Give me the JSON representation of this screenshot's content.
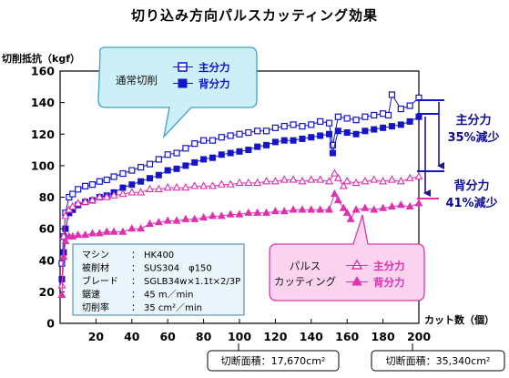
{
  "chart_data": {
    "type": "scatter",
    "title": "切り込み方向パルスカッティング効果",
    "ylabel": "切削抵抗（kgf）",
    "xlabel": "カット数（個）",
    "xlim": [
      0,
      200
    ],
    "ylim": [
      0,
      160
    ],
    "xticks": [
      20,
      40,
      60,
      80,
      100,
      120,
      140,
      160,
      180,
      200
    ],
    "yticks": [
      0,
      20,
      40,
      60,
      80,
      100,
      120,
      140,
      160
    ],
    "grid": false,
    "series": [
      {
        "group": "通常切削",
        "name": "主分力",
        "marker": "square-open",
        "color": "#1515c8",
        "x": [
          1,
          2,
          3,
          5,
          7,
          10,
          14,
          18,
          22,
          26,
          30,
          35,
          40,
          45,
          50,
          55,
          60,
          65,
          70,
          75,
          80,
          85,
          90,
          95,
          100,
          105,
          110,
          115,
          120,
          125,
          130,
          135,
          140,
          145,
          150,
          152,
          155,
          160,
          165,
          170,
          175,
          180,
          183,
          185,
          190,
          195,
          200
        ],
        "y": [
          38,
          55,
          70,
          80,
          82,
          85,
          87,
          88,
          90,
          91,
          93,
          95,
          97,
          99,
          101,
          104,
          107,
          108,
          111,
          114,
          116,
          116,
          118,
          119,
          120,
          121,
          122,
          122,
          124,
          125,
          126,
          125,
          126,
          128,
          127,
          113,
          131,
          130,
          129,
          131,
          132,
          133,
          132,
          145,
          136,
          138,
          143
        ]
      },
      {
        "group": "通常切削",
        "name": "背分力",
        "marker": "square-filled",
        "color": "#1515c8",
        "x": [
          1,
          2,
          3,
          5,
          7,
          10,
          14,
          18,
          22,
          26,
          30,
          35,
          40,
          45,
          50,
          55,
          60,
          65,
          70,
          75,
          80,
          85,
          90,
          95,
          100,
          105,
          110,
          115,
          120,
          125,
          130,
          135,
          140,
          145,
          150,
          152,
          155,
          160,
          165,
          170,
          175,
          180,
          185,
          190,
          195,
          200
        ],
        "y": [
          28,
          45,
          60,
          70,
          72,
          75,
          77,
          78,
          80,
          81,
          83,
          86,
          88,
          90,
          92,
          94,
          97,
          98,
          100,
          102,
          104,
          105,
          107,
          108,
          109,
          110,
          112,
          113,
          115,
          116,
          116,
          117,
          118,
          119,
          120,
          108,
          122,
          121,
          120,
          122,
          123,
          124,
          125,
          126,
          128,
          131
        ]
      },
      {
        "group": "パルスカッティング",
        "name": "主分力",
        "marker": "triangle-open",
        "color": "#e030b0",
        "x": [
          1,
          2,
          3,
          5,
          7,
          10,
          14,
          18,
          22,
          26,
          30,
          35,
          40,
          45,
          50,
          55,
          60,
          65,
          70,
          75,
          80,
          85,
          90,
          95,
          100,
          105,
          110,
          115,
          120,
          125,
          130,
          135,
          140,
          145,
          150,
          153,
          155,
          158,
          160,
          165,
          170,
          175,
          180,
          185,
          190,
          195,
          200
        ],
        "y": [
          24,
          55,
          68,
          72,
          74,
          76,
          77,
          78,
          80,
          80,
          81,
          82,
          83,
          83,
          85,
          85,
          86,
          86,
          86,
          87,
          87,
          87,
          88,
          88,
          89,
          89,
          89,
          90,
          90,
          91,
          91,
          90,
          91,
          91,
          90,
          95,
          92,
          87,
          90,
          89,
          90,
          91,
          90,
          91,
          90,
          92,
          93
        ]
      },
      {
        "group": "パルスカッティング",
        "name": "背分力",
        "marker": "triangle-filled",
        "color": "#e030b0",
        "x": [
          1,
          2,
          3,
          5,
          7,
          10,
          14,
          18,
          22,
          26,
          30,
          35,
          40,
          45,
          50,
          55,
          60,
          65,
          70,
          75,
          80,
          85,
          90,
          95,
          100,
          105,
          110,
          115,
          120,
          125,
          130,
          135,
          140,
          145,
          150,
          153,
          155,
          158,
          160,
          162,
          165,
          170,
          175,
          180,
          185,
          190,
          195,
          200
        ],
        "y": [
          18,
          42,
          52,
          55,
          55,
          56,
          56,
          57,
          57,
          58,
          58,
          58,
          60,
          60,
          63,
          64,
          65,
          65,
          66,
          66,
          67,
          68,
          68,
          69,
          69,
          70,
          70,
          70,
          71,
          71,
          72,
          72,
          72,
          72,
          72,
          82,
          78,
          73,
          70,
          66,
          72,
          73,
          72,
          73,
          74,
          75,
          74,
          76
        ]
      }
    ],
    "legend_normal": {
      "title": "通常切削",
      "main": "主分力",
      "back": "背分力"
    },
    "legend_pulse": {
      "title_line1": "パルス",
      "title_line2": "カッティング",
      "main": "主分力",
      "back": "背分力"
    },
    "annotations": {
      "main_force_reduction": {
        "label": "主分力",
        "value": "35%減少"
      },
      "back_force_reduction": {
        "label": "背分力",
        "value": "41%減少"
      },
      "cut_area_100": "切断面積：17,670cm²",
      "cut_area_200": "切断面積：35,340cm²"
    },
    "conditions": [
      {
        "key": "マシン",
        "sep": "：",
        "value": "HK400"
      },
      {
        "key": "被削材",
        "sep": "：",
        "value": "SUS304　φ150"
      },
      {
        "key": "ブレード",
        "sep": "：",
        "value": "SGLB34w×1.1t×2/3P"
      },
      {
        "key": "鋸速",
        "sep": "：",
        "value": "45 m／min"
      },
      {
        "key": "切削率",
        "sep": "：",
        "value": "35 cm²／min"
      }
    ]
  },
  "colors": {
    "blue": "#1515c8",
    "magenta": "#e030b0",
    "callout_cyan_fill": "#cdeff8",
    "callout_cyan_stroke": "#3fa0c8",
    "callout_pink_fill": "#fbd3ef",
    "callout_pink_stroke": "#d83aa8",
    "conditions_fill": "#e9f4fb",
    "conditions_stroke": "#5a93c2"
  }
}
